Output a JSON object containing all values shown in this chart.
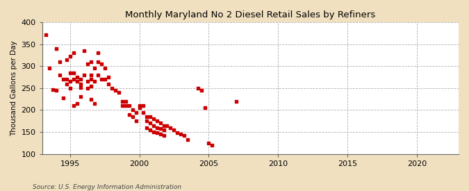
{
  "title": "Monthly Maryland No 2 Diesel Retail Sales by Refiners",
  "ylabel": "Thousand Gallons per Day",
  "source": "Source: U.S. Energy Information Administration",
  "background_color": "#f0e0c0",
  "plot_bg_color": "#ffffff",
  "marker_color": "#cc0000",
  "xlim": [
    1993.0,
    2023.0
  ],
  "ylim": [
    100,
    400
  ],
  "xticks": [
    1995,
    2000,
    2005,
    2010,
    2015,
    2020
  ],
  "yticks": [
    100,
    150,
    200,
    250,
    300,
    350,
    400
  ],
  "data_points": [
    [
      1993.25,
      372
    ],
    [
      1993.5,
      295
    ],
    [
      1993.75,
      247
    ],
    [
      1994.0,
      245
    ],
    [
      1994.0,
      340
    ],
    [
      1994.25,
      310
    ],
    [
      1994.25,
      280
    ],
    [
      1994.5,
      270
    ],
    [
      1994.5,
      228
    ],
    [
      1994.75,
      315
    ],
    [
      1994.75,
      270
    ],
    [
      1994.75,
      260
    ],
    [
      1995.0,
      322
    ],
    [
      1995.0,
      285
    ],
    [
      1995.0,
      265
    ],
    [
      1995.0,
      250
    ],
    [
      1995.25,
      330
    ],
    [
      1995.25,
      285
    ],
    [
      1995.25,
      270
    ],
    [
      1995.25,
      210
    ],
    [
      1995.5,
      275
    ],
    [
      1995.5,
      265
    ],
    [
      1995.5,
      215
    ],
    [
      1995.75,
      270
    ],
    [
      1995.75,
      260
    ],
    [
      1995.75,
      252
    ],
    [
      1995.75,
      230
    ],
    [
      1996.0,
      335
    ],
    [
      1996.0,
      280
    ],
    [
      1996.25,
      305
    ],
    [
      1996.25,
      265
    ],
    [
      1996.25,
      250
    ],
    [
      1996.5,
      310
    ],
    [
      1996.5,
      280
    ],
    [
      1996.5,
      270
    ],
    [
      1996.5,
      255
    ],
    [
      1996.5,
      225
    ],
    [
      1996.75,
      295
    ],
    [
      1996.75,
      265
    ],
    [
      1996.75,
      215
    ],
    [
      1997.0,
      330
    ],
    [
      1997.0,
      310
    ],
    [
      1997.0,
      280
    ],
    [
      1997.25,
      305
    ],
    [
      1997.25,
      270
    ],
    [
      1997.5,
      295
    ],
    [
      1997.5,
      270
    ],
    [
      1997.75,
      275
    ],
    [
      1997.75,
      260
    ],
    [
      1998.0,
      250
    ],
    [
      1998.25,
      245
    ],
    [
      1998.5,
      240
    ],
    [
      1998.75,
      220
    ],
    [
      1998.75,
      210
    ],
    [
      1999.0,
      220
    ],
    [
      1999.0,
      210
    ],
    [
      1999.25,
      210
    ],
    [
      1999.25,
      190
    ],
    [
      1999.5,
      200
    ],
    [
      1999.5,
      185
    ],
    [
      1999.75,
      195
    ],
    [
      1999.75,
      175
    ],
    [
      2000.0,
      210
    ],
    [
      2000.0,
      205
    ],
    [
      2000.25,
      210
    ],
    [
      2000.25,
      195
    ],
    [
      2000.5,
      185
    ],
    [
      2000.5,
      175
    ],
    [
      2000.5,
      160
    ],
    [
      2000.75,
      185
    ],
    [
      2000.75,
      170
    ],
    [
      2000.75,
      155
    ],
    [
      2001.0,
      180
    ],
    [
      2001.0,
      165
    ],
    [
      2001.0,
      150
    ],
    [
      2001.25,
      175
    ],
    [
      2001.25,
      160
    ],
    [
      2001.25,
      148
    ],
    [
      2001.5,
      170
    ],
    [
      2001.5,
      158
    ],
    [
      2001.5,
      145
    ],
    [
      2001.75,
      165
    ],
    [
      2001.75,
      155
    ],
    [
      2001.75,
      142
    ],
    [
      2002.0,
      165
    ],
    [
      2002.25,
      160
    ],
    [
      2002.5,
      155
    ],
    [
      2002.75,
      148
    ],
    [
      2003.0,
      145
    ],
    [
      2003.25,
      143
    ],
    [
      2003.5,
      132
    ],
    [
      2004.25,
      250
    ],
    [
      2004.5,
      245
    ],
    [
      2004.75,
      205
    ],
    [
      2005.0,
      125
    ],
    [
      2005.25,
      120
    ],
    [
      2007.0,
      220
    ]
  ]
}
